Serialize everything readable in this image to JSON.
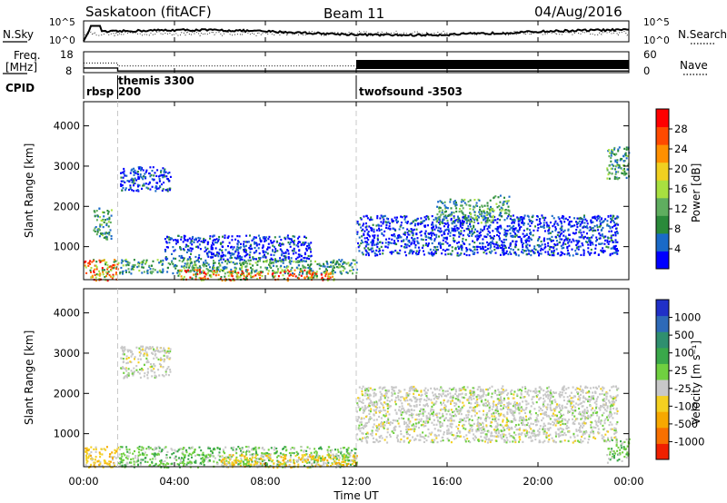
{
  "header": {
    "station": "Saskatoon (fitACF)",
    "beam": "Beam 11",
    "date": "04/Aug/2016"
  },
  "noise_panel": {
    "left_label": "N.Sky",
    "right_label": "N.Search",
    "left_ticks": [
      "10^5",
      "10^0"
    ],
    "right_ticks": [
      "10^5",
      "10^0"
    ],
    "left_ticks_values": [
      5,
      0
    ],
    "right_ticks_values": [
      5,
      0
    ],
    "ylim": [
      0,
      5
    ]
  },
  "freq_panel": {
    "left_label_1": "Freq.",
    "left_label_2": "[MHz]",
    "right_label": "Nave",
    "left_ticks": [
      "18",
      "8"
    ],
    "left_ticks_values": [
      18,
      8
    ],
    "right_ticks": [
      "60",
      "0"
    ],
    "right_ticks_values": [
      60,
      0
    ],
    "ylim_left": [
      8,
      18
    ],
    "ylim_right": [
      0,
      60
    ]
  },
  "cpid": {
    "label": "CPID",
    "segments": [
      {
        "name": "rbsp",
        "start": 0.0
      },
      {
        "name": "themis 3300",
        "start": 1.5
      },
      {
        "name": "200",
        "start": 1.5
      },
      {
        "name": "twofsound -3503",
        "start": 12.0
      }
    ]
  },
  "x_axis": {
    "label": "Time UT",
    "ticks": [
      "00:00",
      "04:00",
      "08:00",
      "12:00",
      "16:00",
      "20:00",
      "00:00"
    ],
    "tick_hours": [
      0,
      4,
      8,
      12,
      16,
      20,
      24
    ],
    "xlim": [
      0,
      24
    ]
  },
  "y_axis": {
    "label": "Slant Range [km]",
    "ticks": [
      "1000",
      "2000",
      "3000",
      "4000"
    ],
    "tick_values": [
      1000,
      2000,
      3000,
      4000
    ],
    "ylim": [
      180,
      4600
    ]
  },
  "power_bar": {
    "label": "Power [dB]",
    "ticks": [
      "4",
      "8",
      "12",
      "16",
      "20",
      "24",
      "28"
    ],
    "colors": [
      "#0000ff",
      "#1a6ac8",
      "#2a8a3a",
      "#5fae5f",
      "#a8e040",
      "#f0d020",
      "#ff9000",
      "#ff4a00",
      "#ff0000"
    ]
  },
  "velocity_bar": {
    "label": "Velocity [m s⁻¹]",
    "ticks": [
      "1000",
      "500",
      "100",
      "25",
      "-25",
      "-100",
      "-500",
      "-1000"
    ],
    "colors": [
      "#2030c8",
      "#2e6ab8",
      "#2f8f6f",
      "#3aa84a",
      "#70d040",
      "#c8c8c8",
      "#f4d020",
      "#f7a800",
      "#f87000",
      "#f02000"
    ]
  },
  "chart_data": {
    "type": "heatmap",
    "x_unit": "hours UT",
    "y_unit": "km",
    "power_regions": [
      {
        "t": [
          1.6,
          3.8
        ],
        "r": [
          2400,
          3000
        ],
        "level": "low"
      },
      {
        "t": [
          0.0,
          1.5
        ],
        "r": [
          180,
          700
        ],
        "level": "high"
      },
      {
        "t": [
          0.4,
          1.2
        ],
        "r": [
          1200,
          2000
        ],
        "level": "medium"
      },
      {
        "t": [
          1.5,
          12.0
        ],
        "r": [
          350,
          700
        ],
        "level": "medium"
      },
      {
        "t": [
          4.0,
          11.0
        ],
        "r": [
          180,
          450
        ],
        "level": "high"
      },
      {
        "t": [
          3.5,
          10.0
        ],
        "r": [
          700,
          1300
        ],
        "level": "low"
      },
      {
        "t": [
          12.0,
          23.5
        ],
        "r": [
          800,
          1800
        ],
        "level": "low"
      },
      {
        "t": [
          15.5,
          18.0
        ],
        "r": [
          1600,
          2200
        ],
        "level": "medium"
      },
      {
        "t": [
          18.0,
          18.7
        ],
        "r": [
          1800,
          2300
        ],
        "level": "medium"
      },
      {
        "t": [
          23.0,
          24.0
        ],
        "r": [
          2700,
          3500
        ],
        "level": "medium"
      }
    ],
    "velocity_regions": [
      {
        "t": [
          0.0,
          1.5
        ],
        "r": [
          180,
          700
        ],
        "sign": "negative"
      },
      {
        "t": [
          1.5,
          12.0
        ],
        "r": [
          180,
          700
        ],
        "sign": "positive"
      },
      {
        "t": [
          6.0,
          12.0
        ],
        "r": [
          180,
          500
        ],
        "sign": "negative"
      },
      {
        "t": [
          12.0,
          23.5
        ],
        "r": [
          800,
          2200
        ],
        "sign": "near-zero"
      },
      {
        "t": [
          1.6,
          3.8
        ],
        "r": [
          2400,
          3200
        ],
        "sign": "near-zero"
      },
      {
        "t": [
          23.0,
          24.0
        ],
        "r": [
          300,
          900
        ],
        "sign": "positive"
      }
    ]
  }
}
